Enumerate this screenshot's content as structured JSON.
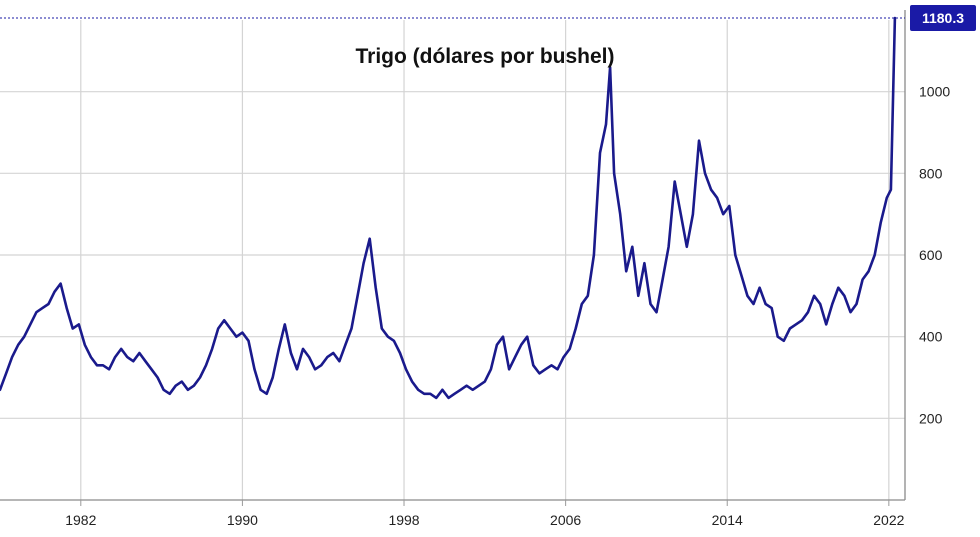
{
  "chart_data": {
    "type": "line",
    "title": "Trigo (dólares por bushel)",
    "xlabel": "",
    "ylabel": "",
    "ylim": [
      0,
      1200
    ],
    "xlim": [
      1978.0,
      2022.8
    ],
    "yticks": [
      200,
      400,
      600,
      800,
      1000
    ],
    "xticks": [
      1982,
      1990,
      1998,
      2006,
      2014,
      2022
    ],
    "xtick_labels": [
      "1982",
      "1990",
      "1998",
      "2006",
      "2014",
      "2022"
    ],
    "last_value_label": "1180.3",
    "grid": true,
    "line_color": "#1a1a8c",
    "badge_color": "#1a1aa6",
    "series": [
      {
        "x": [
          1978.0,
          1978.3,
          1978.6,
          1978.9,
          1979.2,
          1979.5,
          1979.8,
          1980.1,
          1980.4,
          1980.7,
          1981.0,
          1981.3,
          1981.6,
          1981.9,
          1982.2,
          1982.5,
          1982.8,
          1983.1,
          1983.4,
          1983.7,
          1984.0,
          1984.3,
          1984.6,
          1984.9,
          1985.2,
          1985.5,
          1985.8,
          1986.1,
          1986.4,
          1986.7,
          1987.0,
          1987.3,
          1987.6,
          1987.9,
          1988.2,
          1988.5,
          1988.8,
          1989.1,
          1989.4,
          1989.7,
          1990.0,
          1990.3,
          1990.6,
          1990.9,
          1991.2,
          1991.5,
          1991.8,
          1992.1,
          1992.4,
          1992.7,
          1993.0,
          1993.3,
          1993.6,
          1993.9,
          1994.2,
          1994.5,
          1994.8,
          1995.1,
          1995.4,
          1995.7,
          1996.0,
          1996.3,
          1996.6,
          1996.9,
          1997.2,
          1997.5,
          1997.8,
          1998.1,
          1998.4,
          1998.7,
          1999.0,
          1999.3,
          1999.6,
          1999.9,
          2000.2,
          2000.5,
          2000.8,
          2001.1,
          2001.4,
          2001.7,
          2002.0,
          2002.3,
          2002.6,
          2002.9,
          2003.2,
          2003.5,
          2003.8,
          2004.1,
          2004.4,
          2004.7,
          2005.0,
          2005.3,
          2005.6,
          2005.9,
          2006.2,
          2006.5,
          2006.8,
          2007.1,
          2007.4,
          2007.7,
          2008.0,
          2008.2,
          2008.4,
          2008.7,
          2009.0,
          2009.3,
          2009.6,
          2009.9,
          2010.2,
          2010.5,
          2010.8,
          2011.1,
          2011.4,
          2011.7,
          2012.0,
          2012.3,
          2012.6,
          2012.9,
          2013.2,
          2013.5,
          2013.8,
          2014.1,
          2014.4,
          2014.7,
          2015.0,
          2015.3,
          2015.6,
          2015.9,
          2016.2,
          2016.5,
          2016.8,
          2017.1,
          2017.4,
          2017.7,
          2018.0,
          2018.3,
          2018.6,
          2018.9,
          2019.2,
          2019.5,
          2019.8,
          2020.1,
          2020.4,
          2020.7,
          2021.0,
          2021.3,
          2021.6,
          2021.9,
          2022.1,
          2022.3
        ],
        "values": [
          270,
          310,
          350,
          380,
          400,
          430,
          460,
          470,
          480,
          510,
          530,
          470,
          420,
          430,
          380,
          350,
          330,
          330,
          320,
          350,
          370,
          350,
          340,
          360,
          340,
          320,
          300,
          270,
          260,
          280,
          290,
          270,
          280,
          300,
          330,
          370,
          420,
          440,
          420,
          400,
          410,
          390,
          320,
          270,
          260,
          300,
          370,
          430,
          360,
          320,
          370,
          350,
          320,
          330,
          350,
          360,
          340,
          380,
          420,
          500,
          580,
          640,
          520,
          420,
          400,
          390,
          360,
          320,
          290,
          270,
          260,
          260,
          250,
          270,
          250,
          260,
          270,
          280,
          270,
          280,
          290,
          320,
          380,
          400,
          320,
          350,
          380,
          400,
          330,
          310,
          320,
          330,
          320,
          350,
          370,
          420,
          480,
          500,
          600,
          850,
          920,
          1060,
          800,
          700,
          560,
          620,
          500,
          580,
          480,
          460,
          540,
          620,
          780,
          700,
          620,
          700,
          880,
          800,
          760,
          740,
          700,
          720,
          600,
          550,
          500,
          480,
          520,
          480,
          470,
          400,
          390,
          420,
          430,
          440,
          460,
          500,
          480,
          430,
          480,
          520,
          500,
          460,
          480,
          540,
          560,
          600,
          680,
          740,
          760,
          1180.3
        ]
      }
    ]
  }
}
